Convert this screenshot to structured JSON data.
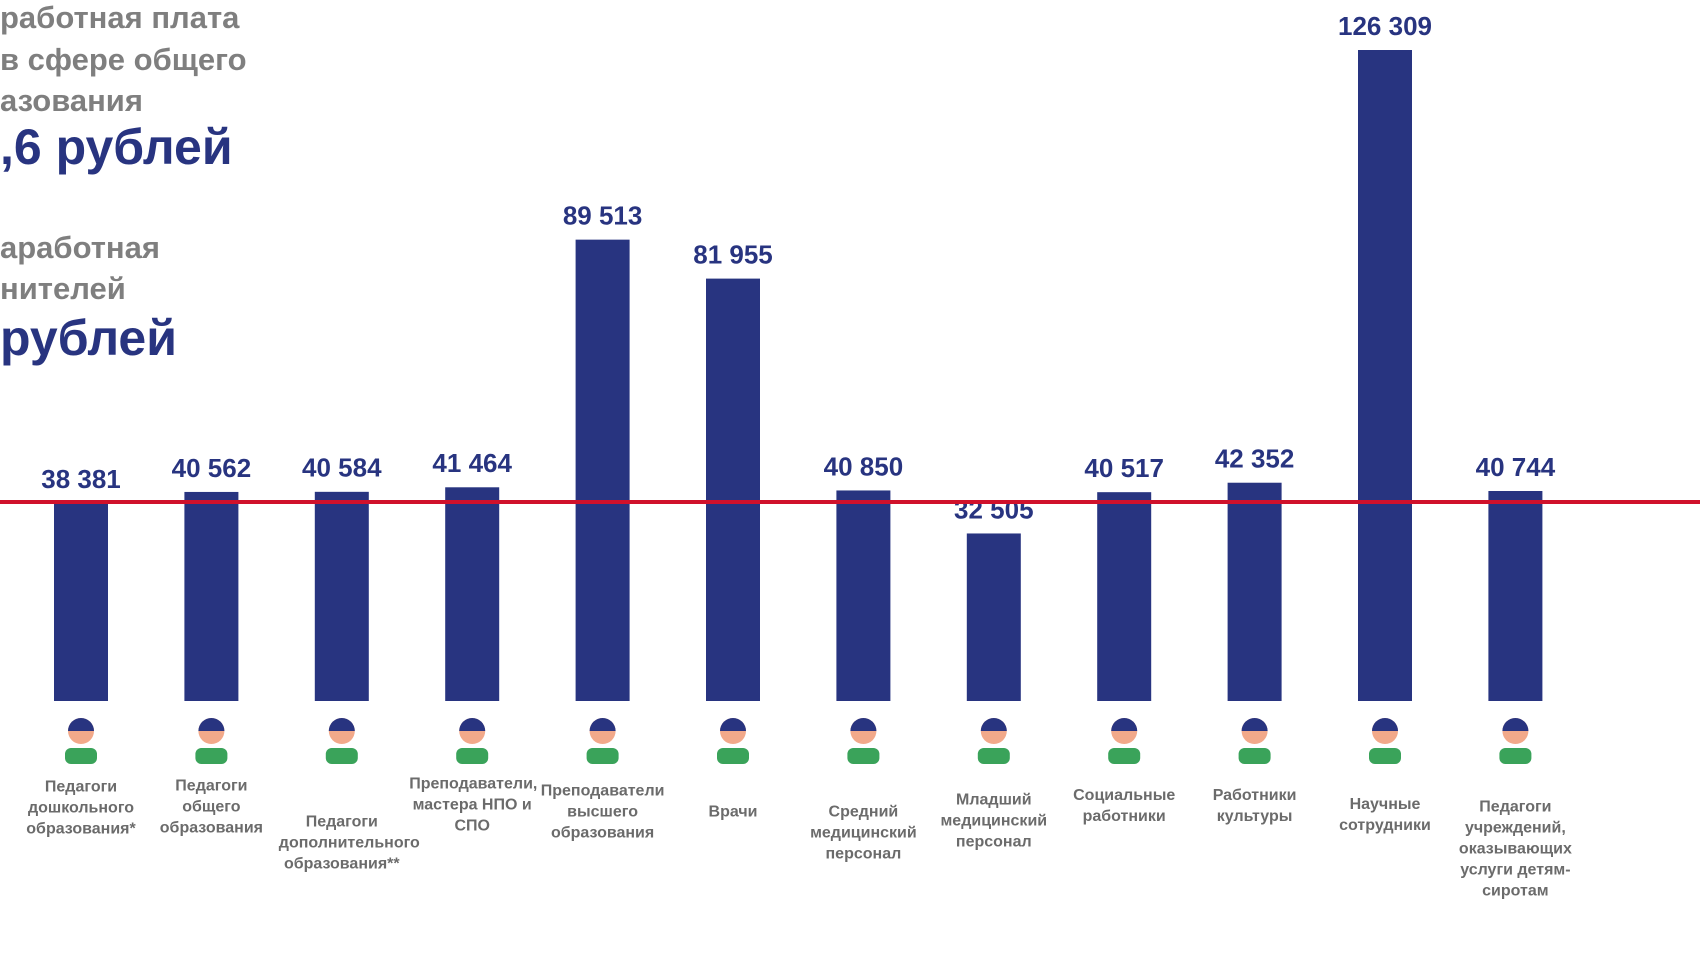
{
  "chart_data": {
    "type": "bar",
    "annotations": [
      "работная плата",
      "в сфере общего",
      "азования",
      ",6 рублей",
      "аработная",
      "нителей",
      "рублей"
    ],
    "categories": [
      "Педагоги дошкольного образования*",
      "Педагоги общего образования",
      "Педагоги дополнительного образования**",
      "Преподаватели, мастера НПО и СПО",
      "Преподаватели высшего образования",
      "Врачи",
      "Средний медицинский персонал",
      "Младший медицинский персонал",
      "Социальные работники",
      "Работники культуры",
      "Научные сотрудники",
      "Педагоги учреждений, оказывающих услуги детям-сиротам"
    ],
    "values": [
      38381,
      40562,
      40584,
      41464,
      89513,
      81955,
      40850,
      32505,
      40517,
      42352,
      126309,
      40744
    ],
    "value_labels": [
      "38 381",
      "40 562",
      "40 584",
      "41 464",
      "89 513",
      "81 955",
      "40 850",
      "32 505",
      "40 517",
      "42 352",
      "126 309",
      "40 744"
    ],
    "color": "#283480",
    "ylim": [
      0,
      126309
    ],
    "reference_line": {
      "value": 38600,
      "color": "#d0112b"
    }
  }
}
